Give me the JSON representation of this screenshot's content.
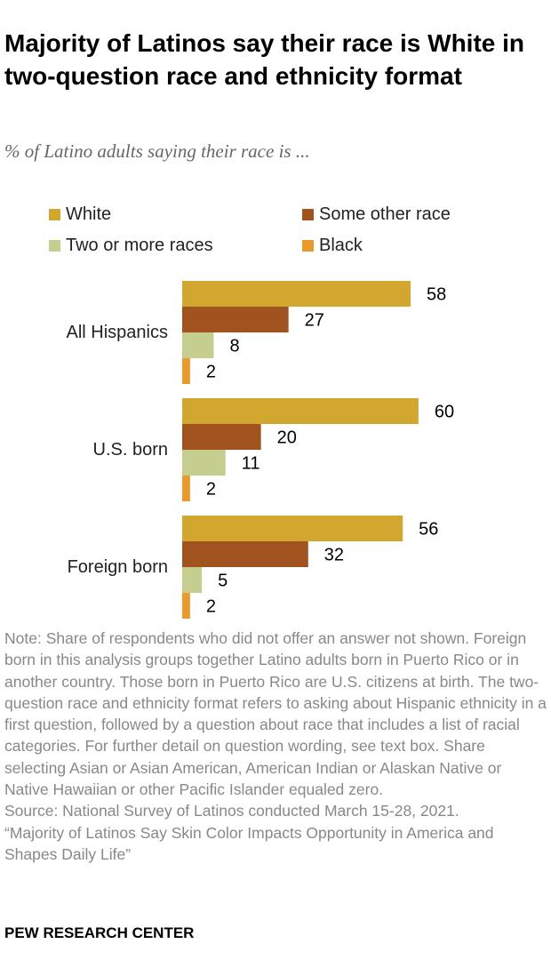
{
  "title": "Majority of Latinos say their race is White in two-question race and ethnicity format",
  "subtitle": "% of Latino adults saying their race is ...",
  "chart_data": {
    "type": "bar",
    "orientation": "horizontal",
    "categories": [
      "All Hispanics",
      "U.S. born",
      "Foreign born"
    ],
    "series": [
      {
        "name": "White",
        "color": "#D1A730",
        "values": [
          58,
          60,
          56
        ]
      },
      {
        "name": "Some other race",
        "color": "#A0531F",
        "values": [
          27,
          20,
          32
        ]
      },
      {
        "name": "Two or more races",
        "color": "#C5CE8F",
        "values": [
          8,
          11,
          5
        ]
      },
      {
        "name": "Black",
        "color": "#E99A2C",
        "values": [
          2,
          2,
          2
        ]
      }
    ],
    "legend": "top",
    "grid": false
  },
  "note": "Note: Share of respondents who did not offer an answer not shown. Foreign born in this analysis groups together Latino adults born in Puerto Rico or in another country. Those born in Puerto Rico are U.S. citizens at birth. The two-question race and ethnicity format refers to asking about Hispanic ethnicity in a first question, followed by a question about race that includes a list of racial categories. For further detail on question wording, see text box. Share selecting Asian or Asian American, American Indian or Alaskan Native or Native Hawaiian or other Pacific Islander equaled zero.",
  "source_line": "Source: National Survey of Latinos conducted March 15-28, 2021.",
  "report_title": "“Majority of Latinos Say Skin Color Impacts Opportunity in America and Shapes Daily Life”",
  "org": "PEW RESEARCH CENTER"
}
